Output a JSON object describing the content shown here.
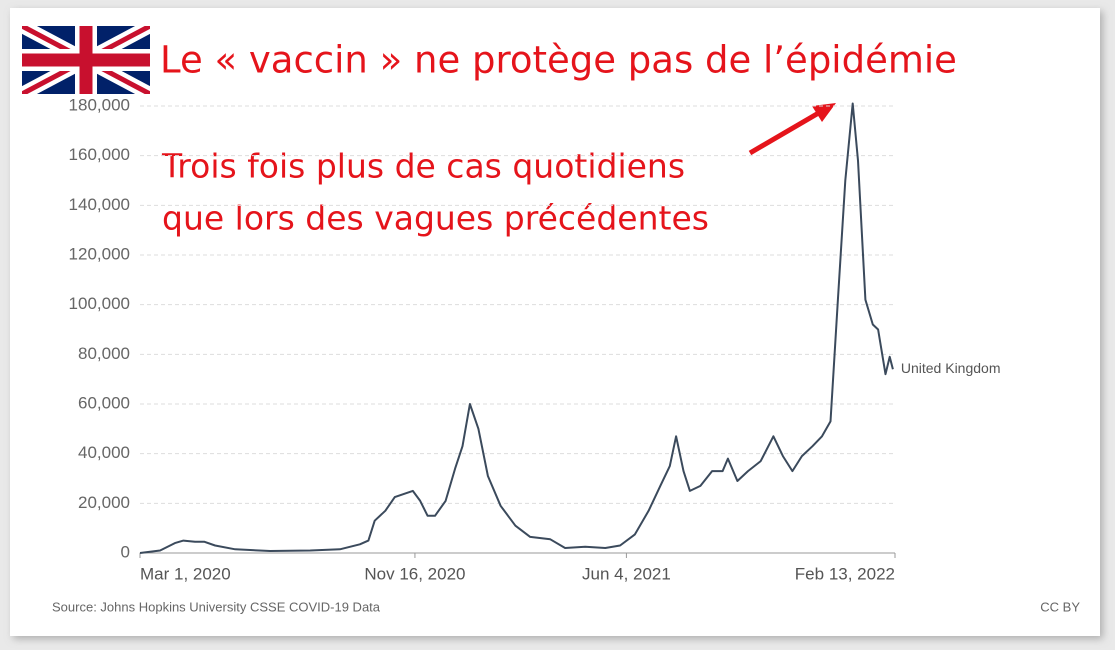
{
  "chart_data": {
    "type": "line",
    "title": "Le « vaccin » ne protège pas de l’épidémie",
    "annotation": [
      "Trois fois plus de cas quotidiens",
      "que lors des vagues précédentes"
    ],
    "source": "Source: Johns Hopkins University CSSE COVID-19 Data",
    "license": "CC BY",
    "x": [
      "2020-03-01",
      "2020-03-20",
      "2020-04-03",
      "2020-04-11",
      "2020-04-22",
      "2020-05-01",
      "2020-05-11",
      "2020-05-30",
      "2020-07-02",
      "2020-08-09",
      "2020-09-06",
      "2020-09-25",
      "2020-10-03",
      "2020-10-09",
      "2020-10-19",
      "2020-10-28",
      "2020-11-07",
      "2020-11-14",
      "2020-11-21",
      "2020-11-28",
      "2020-12-05",
      "2020-12-15",
      "2020-12-24",
      "2020-12-31",
      "2021-01-07",
      "2021-01-15",
      "2021-01-24",
      "2021-02-05",
      "2021-02-19",
      "2021-03-05",
      "2021-03-24",
      "2021-04-07",
      "2021-04-26",
      "2021-05-15",
      "2021-05-29",
      "2021-06-12",
      "2021-06-25",
      "2021-07-06",
      "2021-07-15",
      "2021-07-21",
      "2021-07-28",
      "2021-08-03",
      "2021-08-13",
      "2021-08-24",
      "2021-09-03",
      "2021-09-08",
      "2021-09-17",
      "2021-09-27",
      "2021-10-09",
      "2021-10-21",
      "2021-10-30",
      "2021-11-08",
      "2021-11-17",
      "2021-11-27",
      "2021-12-06",
      "2021-12-14",
      "2021-12-21",
      "2021-12-28",
      "2022-01-04",
      "2022-01-09",
      "2022-01-16",
      "2022-01-23",
      "2022-01-28",
      "2022-02-04",
      "2022-02-08",
      "2022-02-11"
    ],
    "series": [
      {
        "name": "United Kingdom",
        "color": "#3b4a5c",
        "values": [
          0,
          1000,
          4000,
          5000,
          4500,
          4500,
          3000,
          1500,
          800,
          1000,
          1500,
          3500,
          5000,
          13000,
          17000,
          22500,
          24000,
          25000,
          21000,
          15000,
          15000,
          21000,
          34000,
          43000,
          60000,
          50000,
          31000,
          19000,
          11000,
          6500,
          5500,
          2000,
          2500,
          2000,
          3000,
          7500,
          17000,
          27000,
          35000,
          47000,
          33000,
          25000,
          27000,
          33000,
          33000,
          38000,
          29000,
          33000,
          37000,
          47000,
          39000,
          33000,
          39000,
          43000,
          47000,
          53000,
          102000,
          150000,
          181000,
          158000,
          102000,
          92000,
          90000,
          72000,
          79000,
          74000
        ]
      }
    ],
    "xlim": [
      "2020-03-01",
      "2022-02-13"
    ],
    "xticks": [
      {
        "value": "2020-03-01",
        "label": "Mar 1, 2020"
      },
      {
        "value": "2020-11-16",
        "label": "Nov 16, 2020"
      },
      {
        "value": "2021-06-04",
        "label": "Jun 4, 2021"
      },
      {
        "value": "2022-02-13",
        "label": "Feb 13, 2022"
      }
    ],
    "ylim": [
      0,
      180000
    ],
    "yticks": [
      0,
      {
        "value": 20000,
        "label": "20,000"
      },
      {
        "value": 40000,
        "label": "40,000"
      },
      {
        "value": 60000,
        "label": "60,000"
      },
      {
        "value": 80000,
        "label": "80,000"
      },
      {
        "value": 100000,
        "label": "100,000"
      },
      {
        "value": 120000,
        "label": "120,000"
      },
      {
        "value": 140000,
        "label": "140,000"
      },
      {
        "value": 160000,
        "label": "160,000"
      },
      {
        "value": 180000,
        "label": "180,000"
      }
    ],
    "grid": true
  }
}
